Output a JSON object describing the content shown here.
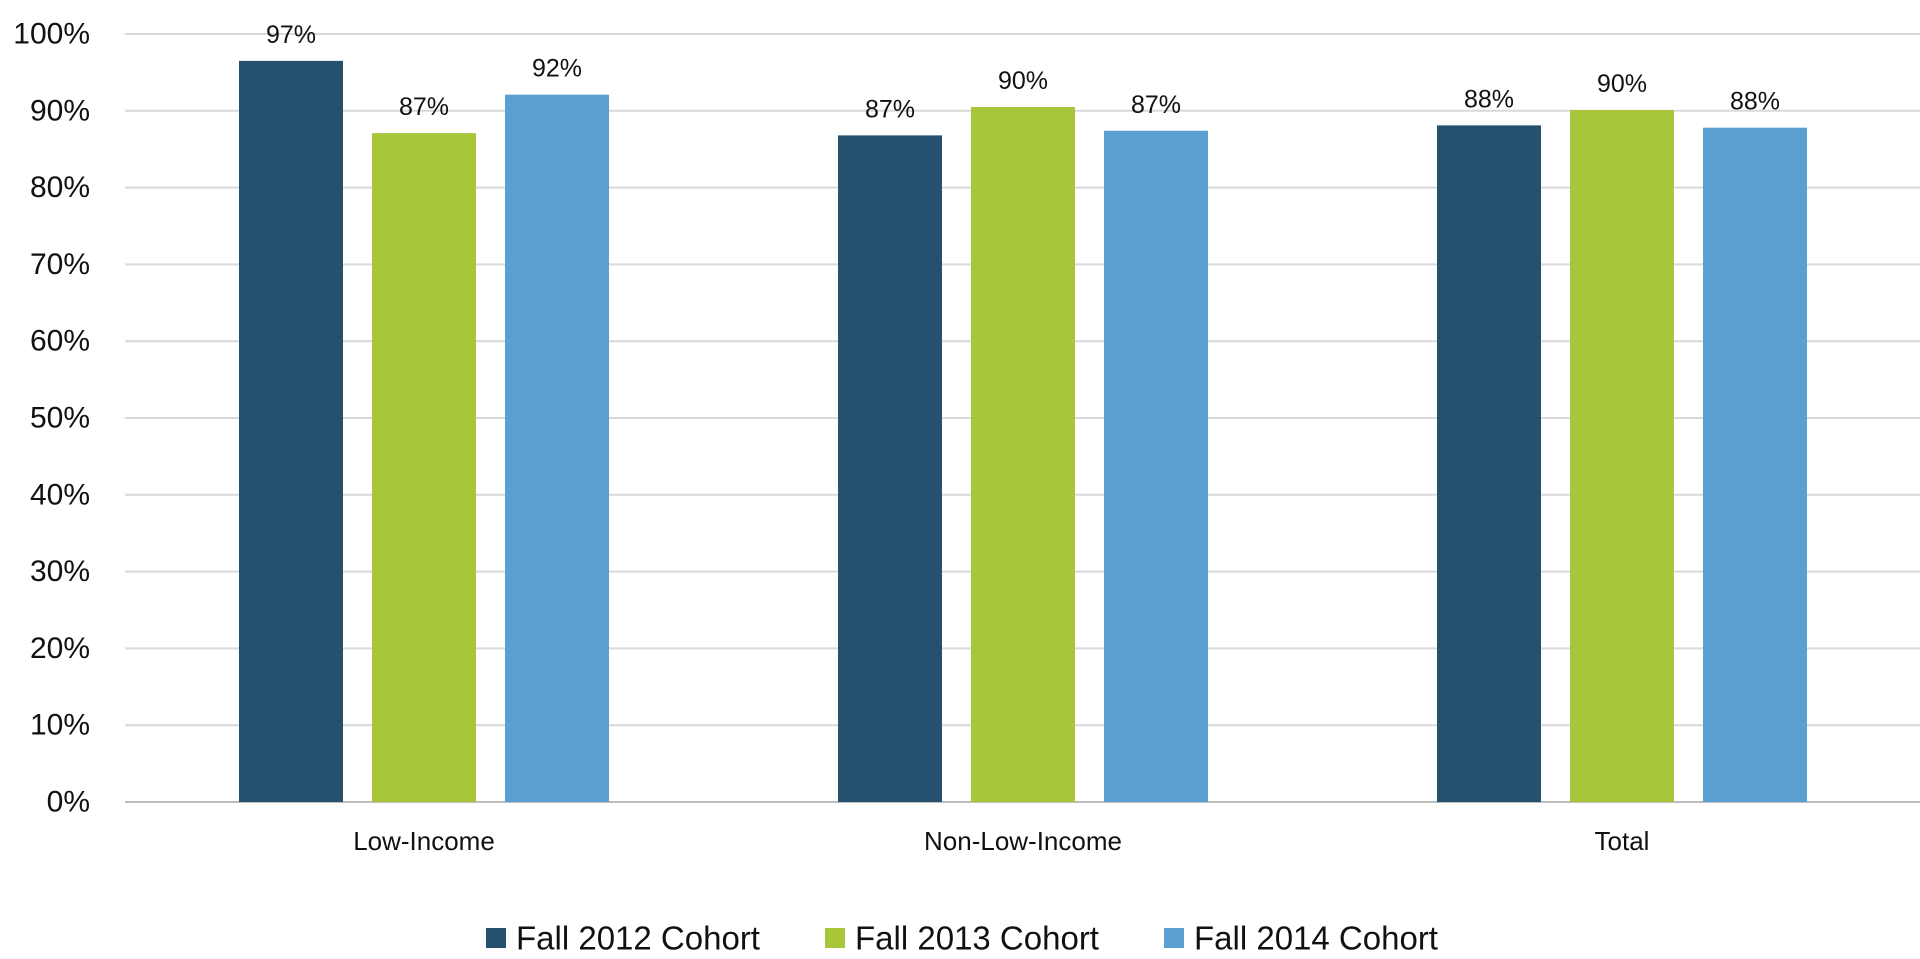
{
  "chart_data": {
    "type": "bar",
    "title": "",
    "xlabel": "",
    "ylabel": "",
    "categories": [
      "Low-Income",
      "Non-Low-Income",
      "Total"
    ],
    "series": [
      {
        "name": "Fall 2012 Cohort",
        "color": "#25506e",
        "values": [
          96.5,
          86.8,
          88.1
        ],
        "labels": [
          "97%",
          "87%",
          "88%"
        ]
      },
      {
        "name": "Fall 2013 Cohort",
        "color": "#a8c63a",
        "values": [
          87.1,
          90.5,
          90.1
        ],
        "labels": [
          "87%",
          "90%",
          "90%"
        ]
      },
      {
        "name": "Fall 2014 Cohort",
        "color": "#5aa0d2",
        "values": [
          92.1,
          87.4,
          87.8
        ],
        "labels": [
          "92%",
          "87%",
          "88%"
        ]
      }
    ],
    "ylim": [
      0,
      100
    ],
    "yticks": [
      0,
      10,
      20,
      30,
      40,
      50,
      60,
      70,
      80,
      90,
      100
    ],
    "ytick_labels": [
      "0%",
      "10%",
      "20%",
      "30%",
      "40%",
      "50%",
      "60%",
      "70%",
      "80%",
      "90%",
      "100%"
    ],
    "grid": true,
    "legend_position": "bottom-center"
  }
}
